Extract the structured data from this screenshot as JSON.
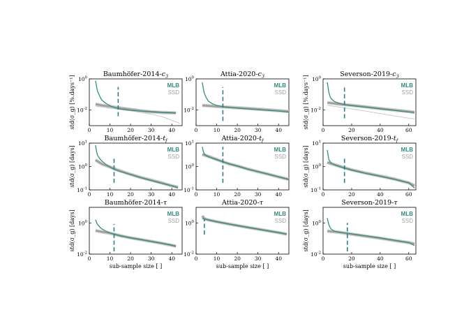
{
  "colors": {
    "mlb": "#2e8b7f",
    "ssd": "#9e9e9e",
    "ssd_light": "#c4c4c4",
    "marker": "#2e7d86",
    "axis": "#000000"
  },
  "figure": {
    "xlabel": "sub-sample size [ ]"
  },
  "chart_data": [
    {
      "type": "line",
      "title_main": "Baumhöfer-2014-",
      "title_sub": "c",
      "title_sub_small": "3",
      "ylabel": "std(σ_g) [%.days⁻¹]",
      "xlim": [
        0,
        45
      ],
      "xticks": [
        "0",
        "10",
        "20",
        "30",
        "40"
      ],
      "yscale": "log",
      "ylim": [
        0.001,
        1
      ],
      "yticks": [
        {
          "v": 1,
          "label": "10^0"
        },
        {
          "v": 0.01,
          "label": "10^-2"
        }
      ],
      "marker_x": 14,
      "marker_y": [
        0.004,
        0.3
      ],
      "series": [
        {
          "name": "MLB",
          "x": [
            3,
            3.5,
            4,
            5,
            6,
            8,
            10,
            12,
            15,
            20,
            25,
            30,
            35,
            40,
            42
          ],
          "y": [
            0.75,
            0.35,
            0.16,
            0.08,
            0.045,
            0.027,
            0.019,
            0.0145,
            0.0115,
            0.0095,
            0.0085,
            0.0078,
            0.0072,
            0.0067,
            0.0065
          ]
        },
        {
          "name": "SSD",
          "x": [
            3,
            6,
            10,
            14,
            20,
            25,
            30,
            35,
            40,
            42
          ],
          "y": [
            0.024,
            0.02,
            0.017,
            0.014,
            0.011,
            0.009,
            0.0078,
            0.007,
            0.0067,
            0.0066
          ]
        },
        {
          "name": "",
          "x": [
            3,
            10,
            20,
            30,
            36,
            40,
            44
          ],
          "y": [
            0.018,
            0.013,
            0.009,
            0.0055,
            0.0035,
            0.0022,
            0.0014
          ]
        }
      ]
    },
    {
      "type": "line",
      "title_main": "Attia-2020-",
      "title_sub": "c",
      "title_sub_small": "3",
      "ylabel": "",
      "xlim": [
        0,
        45
      ],
      "xticks": [
        "0",
        "10",
        "20",
        "30",
        "40"
      ],
      "yscale": "log",
      "ylim": [
        0.001,
        1
      ],
      "yticks": [
        {
          "v": 1,
          "label": "10^0"
        },
        {
          "v": 0.01,
          "label": "10^-2"
        }
      ],
      "marker_x": 13,
      "marker_y": [
        0.002,
        0.3
      ],
      "series": [
        {
          "name": "MLB",
          "x": [
            3,
            3.5,
            4,
            5,
            6,
            8,
            10,
            13,
            16,
            20,
            25,
            30,
            35,
            40,
            45
          ],
          "y": [
            0.6,
            0.25,
            0.12,
            0.06,
            0.037,
            0.025,
            0.02,
            0.0165,
            0.0145,
            0.0132,
            0.0118,
            0.0105,
            0.0095,
            0.0085,
            0.0075
          ]
        },
        {
          "name": "SSD",
          "x": [
            3,
            10,
            20,
            30,
            40,
            45
          ],
          "y": [
            0.02,
            0.017,
            0.014,
            0.0115,
            0.0092,
            0.008
          ]
        }
      ]
    },
    {
      "type": "line",
      "title_main": "Severson-2019-",
      "title_sub": "c",
      "title_sub_small": "3",
      "ylabel": "std(σ_g) [%.days⁻¹]",
      "xlim": [
        0,
        65
      ],
      "xticks": [
        "0",
        "20",
        "40",
        "60"
      ],
      "yscale": "log",
      "ylim": [
        0.001,
        1
      ],
      "yticks": [
        {
          "v": 1,
          "label": "10^0"
        },
        {
          "v": 0.01,
          "label": "10^-2"
        }
      ],
      "marker_x": 15,
      "marker_y": [
        0.003,
        0.28
      ],
      "series": [
        {
          "name": "MLB",
          "x": [
            3,
            3.5,
            4,
            5,
            6,
            8,
            10,
            15,
            20,
            30,
            40,
            50,
            60,
            64
          ],
          "y": [
            0.6,
            0.28,
            0.14,
            0.07,
            0.05,
            0.035,
            0.03,
            0.022,
            0.019,
            0.015,
            0.012,
            0.0095,
            0.0075,
            0.0068
          ]
        },
        {
          "name": "SSD",
          "x": [
            3,
            10,
            20,
            30,
            40,
            50,
            60,
            64
          ],
          "y": [
            0.03,
            0.025,
            0.02,
            0.016,
            0.0125,
            0.01,
            0.008,
            0.0072
          ]
        },
        {
          "name": "",
          "x": [
            3,
            20,
            40,
            50,
            60,
            64
          ],
          "y": [
            0.02,
            0.012,
            0.006,
            0.0042,
            0.003,
            0.0027
          ]
        }
      ]
    },
    {
      "type": "line",
      "title_main": "Baumhöfer-2014-",
      "title_sub": "t",
      "title_sub_small": "f",
      "ylabel": "std(σ_g) [days]",
      "xlim": [
        0,
        45
      ],
      "xticks": [
        "0",
        "10",
        "20",
        "30",
        "40"
      ],
      "yscale": "log",
      "ylim": [
        0.1,
        10
      ],
      "yticks": [
        {
          "v": 10,
          "label": "10^1"
        },
        {
          "v": 1,
          "label": "10^0"
        },
        {
          "v": 0.1,
          "label": "10^-1"
        }
      ],
      "marker_x": 12,
      "marker_y": [
        0.2,
        2.5
      ],
      "series": [
        {
          "name": "MLB",
          "x": [
            3,
            3.5,
            4,
            5,
            6,
            8,
            10,
            12,
            15,
            20,
            25,
            30,
            35,
            40,
            43
          ],
          "y": [
            8,
            4.5,
            3,
            2.2,
            1.75,
            1.25,
            0.95,
            0.75,
            0.6,
            0.45,
            0.33,
            0.25,
            0.19,
            0.15,
            0.12
          ]
        },
        {
          "name": "SSD",
          "x": [
            3,
            6,
            10,
            12,
            15,
            20,
            25,
            30,
            35,
            40,
            43
          ],
          "y": [
            1.9,
            1.3,
            0.95,
            0.8,
            0.65,
            0.46,
            0.34,
            0.26,
            0.2,
            0.15,
            0.13
          ]
        }
      ]
    },
    {
      "type": "line",
      "title_main": "Attia-2020-",
      "title_sub": "t",
      "title_sub_small": "f",
      "ylabel": "",
      "xlim": [
        0,
        45
      ],
      "xticks": [
        "0",
        "10",
        "20",
        "30",
        "40"
      ],
      "yscale": "log",
      "ylim": [
        0.1,
        10
      ],
      "yticks": [
        {
          "v": 10,
          "label": "10^1"
        },
        {
          "v": 1,
          "label": "10^0"
        },
        {
          "v": 0.1,
          "label": "10^-1"
        }
      ],
      "marker_x": 13,
      "marker_y": [
        0.2,
        7
      ],
      "series": [
        {
          "name": "MLB",
          "x": [
            3,
            3.5,
            4,
            5,
            6,
            8,
            10,
            13,
            16,
            20,
            25,
            30,
            35,
            40,
            45
          ],
          "y": [
            7,
            4.5,
            3.5,
            2.9,
            2.6,
            2.2,
            1.95,
            1.6,
            1.3,
            1.05,
            0.78,
            0.6,
            0.47,
            0.36,
            0.28
          ]
        },
        {
          "name": "SSD",
          "x": [
            3,
            6,
            10,
            13,
            16,
            20,
            25,
            30,
            35,
            40,
            45
          ],
          "y": [
            3.3,
            2.7,
            2,
            1.6,
            1.3,
            1.05,
            0.78,
            0.6,
            0.47,
            0.36,
            0.28
          ]
        }
      ]
    },
    {
      "type": "line",
      "title_main": "Severson-2019-",
      "title_sub": "t",
      "title_sub_small": "f",
      "ylabel": "std(σ_g) [days]",
      "xlim": [
        0,
        65
      ],
      "xticks": [
        "0",
        "20",
        "40",
        "60"
      ],
      "yscale": "log",
      "ylim": [
        0.1,
        10
      ],
      "yticks": [
        {
          "v": 10,
          "label": "10^1"
        },
        {
          "v": 1,
          "label": "10^0"
        },
        {
          "v": 0.1,
          "label": "10^-1"
        }
      ],
      "marker_x": 15,
      "marker_y": [
        0.2,
        2.6
      ],
      "series": [
        {
          "name": "MLB",
          "x": [
            3,
            3.5,
            4,
            5,
            6,
            8,
            10,
            15,
            20,
            30,
            40,
            50,
            55,
            60,
            64
          ],
          "y": [
            5,
            3,
            2,
            1.6,
            1.4,
            1.2,
            1.05,
            0.85,
            0.7,
            0.5,
            0.38,
            0.28,
            0.24,
            0.2,
            0.12
          ]
        },
        {
          "name": "SSD",
          "x": [
            3,
            6,
            10,
            15,
            20,
            30,
            40,
            50,
            55,
            60,
            64
          ],
          "y": [
            1.5,
            1.3,
            1.1,
            0.88,
            0.72,
            0.52,
            0.39,
            0.29,
            0.24,
            0.2,
            0.15
          ]
        }
      ]
    },
    {
      "type": "line",
      "title_main": "Baumhöfer-2014-",
      "title_sub": "τ",
      "title_sub_small": "",
      "ylabel": "std(σ_g) [days]",
      "xlim": [
        0,
        45
      ],
      "xticks": [
        "0",
        "10",
        "20",
        "30",
        "40"
      ],
      "yscale": "log",
      "ylim": [
        0.01,
        10
      ],
      "yticks": [
        {
          "v": 1,
          "label": "10^0"
        },
        {
          "v": 0.01,
          "label": "10^-2"
        }
      ],
      "marker_x": 12,
      "marker_y": [
        0.015,
        0.85
      ],
      "series": [
        {
          "name": "MLB",
          "x": [
            3,
            3.5,
            4,
            5,
            6,
            8,
            10,
            12,
            15,
            20,
            25,
            30,
            35,
            40,
            42
          ],
          "y": [
            1.6,
            1.1,
            0.8,
            0.55,
            0.42,
            0.3,
            0.23,
            0.19,
            0.15,
            0.11,
            0.085,
            0.065,
            0.05,
            0.037,
            0.032
          ]
        },
        {
          "name": "SSD",
          "x": [
            3,
            6,
            10,
            12,
            15,
            20,
            25,
            30,
            35,
            40,
            42
          ],
          "y": [
            0.32,
            0.27,
            0.22,
            0.19,
            0.15,
            0.11,
            0.085,
            0.065,
            0.05,
            0.037,
            0.032
          ]
        }
      ]
    },
    {
      "type": "line",
      "title_main": "Attia-2020-",
      "title_sub": "τ",
      "title_sub_small": "",
      "ylabel": "",
      "xlim": [
        0,
        45
      ],
      "xticks": [
        "0",
        "10",
        "20",
        "30",
        "40"
      ],
      "yscale": "log",
      "ylim": [
        0.01,
        10
      ],
      "yticks": [
        {
          "v": 1,
          "label": "10^0"
        },
        {
          "v": 0.01,
          "label": "10^-2"
        }
      ],
      "marker_x": 4,
      "marker_y": [
        0.18,
        1.8
      ],
      "series": [
        {
          "name": "MLB",
          "x": [
            3,
            4,
            6,
            10,
            15,
            20,
            25,
            30,
            35,
            40,
            44
          ],
          "y": [
            1.9,
            1.75,
            1.55,
            1.2,
            0.9,
            0.68,
            0.52,
            0.4,
            0.31,
            0.24,
            0.19
          ]
        },
        {
          "name": "SSD",
          "x": [
            3,
            4,
            6,
            10,
            15,
            20,
            25,
            30,
            35,
            40,
            44
          ],
          "y": [
            2.8,
            1.9,
            1.55,
            1.2,
            0.9,
            0.68,
            0.52,
            0.4,
            0.31,
            0.24,
            0.19
          ]
        }
      ]
    },
    {
      "type": "line",
      "title_main": "Severson-2019-",
      "title_sub": "τ",
      "title_sub_small": "",
      "ylabel": "std(σ_g) [days]",
      "xlim": [
        0,
        65
      ],
      "xticks": [
        "0",
        "20",
        "40",
        "60"
      ],
      "yscale": "log",
      "ylim": [
        0.01,
        10
      ],
      "yticks": [
        {
          "v": 1,
          "label": "10^0"
        },
        {
          "v": 0.01,
          "label": "10^-2"
        }
      ],
      "marker_x": 17,
      "marker_y": [
        0.015,
        1.0
      ],
      "series": [
        {
          "name": "MLB",
          "x": [
            3,
            3.5,
            4,
            5,
            6,
            8,
            10,
            17,
            20,
            30,
            40,
            50,
            60,
            64
          ],
          "y": [
            2,
            1.2,
            0.8,
            0.5,
            0.38,
            0.3,
            0.27,
            0.22,
            0.2,
            0.15,
            0.11,
            0.078,
            0.055,
            0.035
          ]
        },
        {
          "name": "SSD",
          "x": [
            3,
            10,
            17,
            20,
            30,
            40,
            50,
            60,
            64
          ],
          "y": [
            0.3,
            0.26,
            0.21,
            0.19,
            0.14,
            0.105,
            0.075,
            0.055,
            0.045
          ]
        }
      ]
    }
  ]
}
